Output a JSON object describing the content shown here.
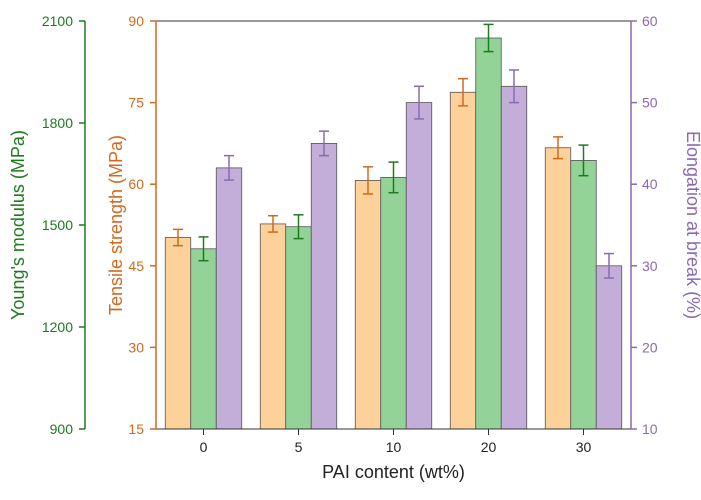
{
  "chart_data": {
    "type": "bar",
    "xlabel": "PAI content (wt%)",
    "categories": [
      "0",
      "5",
      "10",
      "20",
      "30"
    ],
    "axes": {
      "tensile": {
        "label": "Tensile strength (MPa)",
        "color": "#d2691e",
        "ylim": [
          15,
          90
        ],
        "ticks": [
          "15",
          "30",
          "45",
          "60",
          "75",
          "90"
        ],
        "tick_values": [
          15,
          30,
          45,
          60,
          75,
          90
        ]
      },
      "modulus": {
        "label": "Young's modulus (MPa)",
        "color": "#1e7a1e",
        "ylim": [
          900,
          2100
        ],
        "ticks": [
          "900",
          "1200",
          "1500",
          "1800",
          "2100"
        ],
        "tick_values": [
          900,
          1200,
          1500,
          1800,
          2100
        ]
      },
      "elongation": {
        "label": "Elongation at break (%)",
        "color": "#8a6ab2",
        "ylim": [
          10,
          60
        ],
        "ticks": [
          "10",
          "20",
          "30",
          "40",
          "50",
          "60"
        ],
        "tick_values": [
          10,
          20,
          30,
          40,
          50,
          60
        ]
      }
    },
    "series": [
      {
        "name": "Tensile strength",
        "axis": "tensile",
        "values": [
          50.2,
          52.7,
          60.7,
          76.9,
          66.7
        ],
        "errors": [
          1.5,
          1.5,
          2.5,
          2.5,
          2.0
        ],
        "fill": "#fcd29a",
        "errorColor": "#d2691e"
      },
      {
        "name": "Young's modulus",
        "axis": "modulus",
        "values": [
          1430,
          1495,
          1640,
          2050,
          1690
        ],
        "errors": [
          35,
          35,
          45,
          40,
          45
        ],
        "fill": "#94d398",
        "errorColor": "#1e7a1e"
      },
      {
        "name": "Elongation at break",
        "axis": "elongation",
        "values": [
          42.0,
          45.0,
          50.0,
          52.0,
          30.0
        ],
        "errors": [
          1.5,
          1.5,
          2.0,
          2.0,
          1.5
        ],
        "fill": "#c2aed8",
        "errorColor": "#8a6ab2"
      }
    ]
  }
}
